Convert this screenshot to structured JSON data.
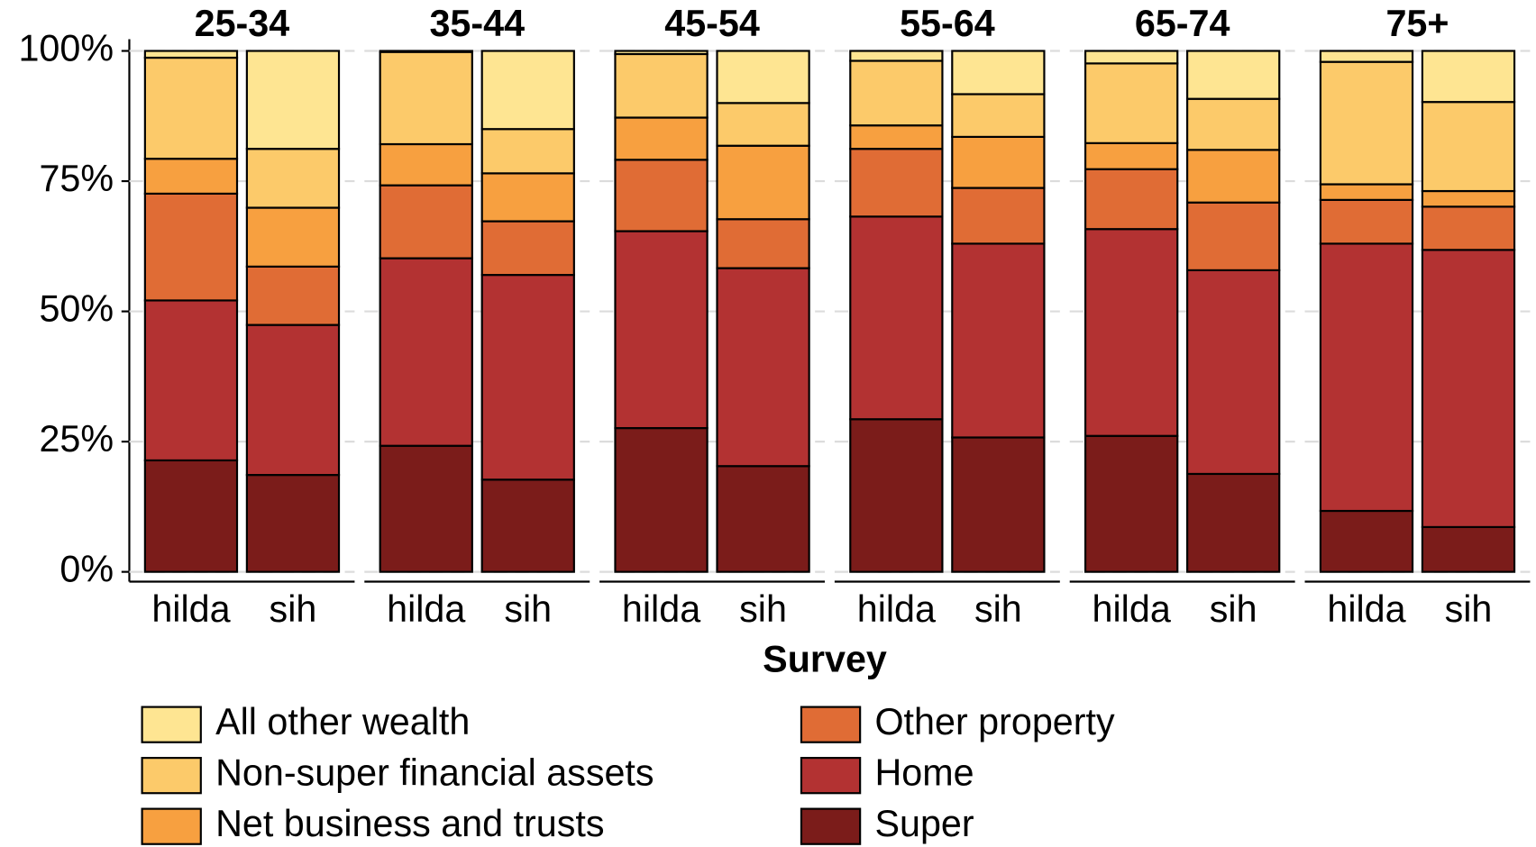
{
  "chart_data": {
    "type": "bar",
    "stacked": true,
    "panels": [
      "25-34",
      "35-44",
      "45-54",
      "55-64",
      "65-74",
      "75+"
    ],
    "categories": [
      "hilda",
      "sih"
    ],
    "x_label": "Survey",
    "ylim": [
      0,
      100
    ],
    "yticks": [
      {
        "value": 0,
        "label": "0%"
      },
      {
        "value": 25,
        "label": "25%"
      },
      {
        "value": 50,
        "label": "50%"
      },
      {
        "value": 75,
        "label": "75%"
      },
      {
        "value": 100,
        "label": "100%"
      }
    ],
    "grid": true,
    "series": [
      {
        "name": "Super",
        "color": "#7b1c1a",
        "values": [
          [
            21.4,
            18.6
          ],
          [
            24.2,
            17.7
          ],
          [
            27.6,
            20.3
          ],
          [
            29.3,
            25.8
          ],
          [
            26.1,
            18.8
          ],
          [
            11.7,
            8.6
          ]
        ]
      },
      {
        "name": "Home",
        "color": "#b33232",
        "values": [
          [
            30.7,
            28.8
          ],
          [
            36.0,
            39.3
          ],
          [
            37.8,
            38.0
          ],
          [
            38.9,
            37.2
          ],
          [
            39.7,
            39.1
          ],
          [
            51.3,
            53.2
          ]
        ]
      },
      {
        "name": "Other property",
        "color": "#e06c35",
        "values": [
          [
            20.5,
            11.2
          ],
          [
            14.0,
            10.3
          ],
          [
            13.7,
            9.4
          ],
          [
            13.0,
            10.7
          ],
          [
            11.5,
            13.0
          ],
          [
            8.4,
            8.3
          ]
        ]
      },
      {
        "name": "Net business and trusts",
        "color": "#f7a040",
        "values": [
          [
            6.7,
            11.3
          ],
          [
            7.9,
            9.2
          ],
          [
            8.1,
            14.1
          ],
          [
            4.5,
            9.8
          ],
          [
            5.0,
            10.1
          ],
          [
            3.0,
            3.0
          ]
        ]
      },
      {
        "name": "Non-super financial assets",
        "color": "#fcca6a",
        "values": [
          [
            19.4,
            11.3
          ],
          [
            17.7,
            8.5
          ],
          [
            12.2,
            8.2
          ],
          [
            12.4,
            8.2
          ],
          [
            15.3,
            9.8
          ],
          [
            23.5,
            17.1
          ]
        ]
      },
      {
        "name": "All other wealth",
        "color": "#fee592",
        "values": [
          [
            1.3,
            18.8
          ],
          [
            0.2,
            15.0
          ],
          [
            0.6,
            10.0
          ],
          [
            1.9,
            8.3
          ],
          [
            2.4,
            9.2
          ],
          [
            2.1,
            9.8
          ]
        ]
      }
    ]
  }
}
